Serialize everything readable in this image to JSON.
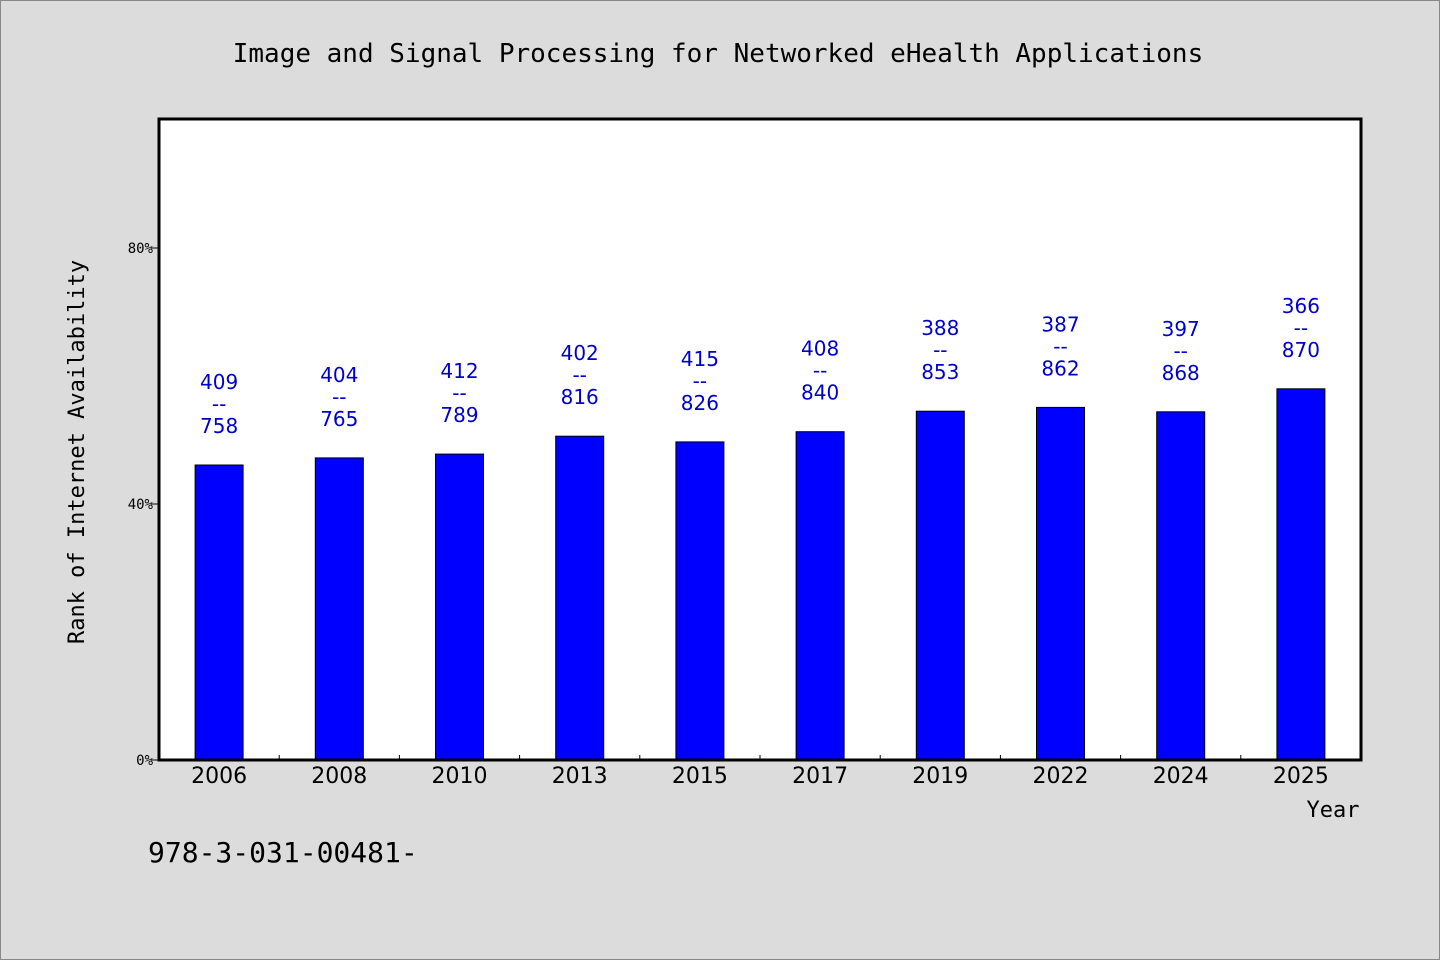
{
  "chart_data": {
    "type": "bar",
    "title": "Image and Signal Processing for Networked eHealth Applications",
    "xlabel": "Year",
    "ylabel": "Rank of Internet Availability",
    "footer_text": "978-3-031-00481-",
    "categories": [
      "2006",
      "2008",
      "2010",
      "2013",
      "2015",
      "2017",
      "2019",
      "2022",
      "2024",
      "2025"
    ],
    "values": [
      46.1,
      47.2,
      47.8,
      50.6,
      49.7,
      51.3,
      54.5,
      55.1,
      54.4,
      58.0
    ],
    "bar_labels": [
      {
        "top": "409",
        "mid": "--",
        "bottom": "758"
      },
      {
        "top": "404",
        "mid": "--",
        "bottom": "765"
      },
      {
        "top": "412",
        "mid": "--",
        "bottom": "789"
      },
      {
        "top": "402",
        "mid": "--",
        "bottom": "816"
      },
      {
        "top": "415",
        "mid": "--",
        "bottom": "826"
      },
      {
        "top": "408",
        "mid": "--",
        "bottom": "840"
      },
      {
        "top": "388",
        "mid": "--",
        "bottom": "853"
      },
      {
        "top": "387",
        "mid": "--",
        "bottom": "862"
      },
      {
        "top": "397",
        "mid": "--",
        "bottom": "868"
      },
      {
        "top": "366",
        "mid": "--",
        "bottom": "870"
      }
    ],
    "y_ticks": [
      {
        "value": 0,
        "label": "0%"
      },
      {
        "value": 40,
        "label": "40%"
      },
      {
        "value": 80,
        "label": "80%"
      }
    ],
    "ylim": [
      0,
      100
    ],
    "grid": false,
    "colors": {
      "bar": "#0000ff",
      "label": "#0000cc",
      "background": "#dcdcdc",
      "plot_background": "#ffffff",
      "axis": "#000000"
    }
  }
}
